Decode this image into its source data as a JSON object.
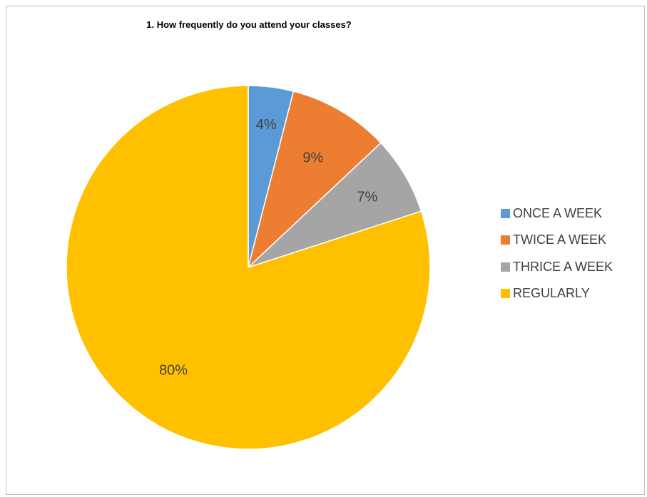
{
  "chart_data": {
    "type": "pie",
    "title": "1. How frequently do you attend your classes?",
    "categories": [
      "ONCE A WEEK",
      "TWICE A WEEK",
      "THRICE A WEEK",
      "REGULARLY"
    ],
    "values": [
      4,
      9,
      7,
      80
    ],
    "labels": [
      "4%",
      "9%",
      "7%",
      "80%"
    ],
    "colors": [
      "#5b9bd5",
      "#ed7d31",
      "#a5a5a5",
      "#ffc000"
    ],
    "start_angle": "12 o'clock",
    "direction": "clockwise",
    "legend_position": "right",
    "data_labels": "inside"
  }
}
